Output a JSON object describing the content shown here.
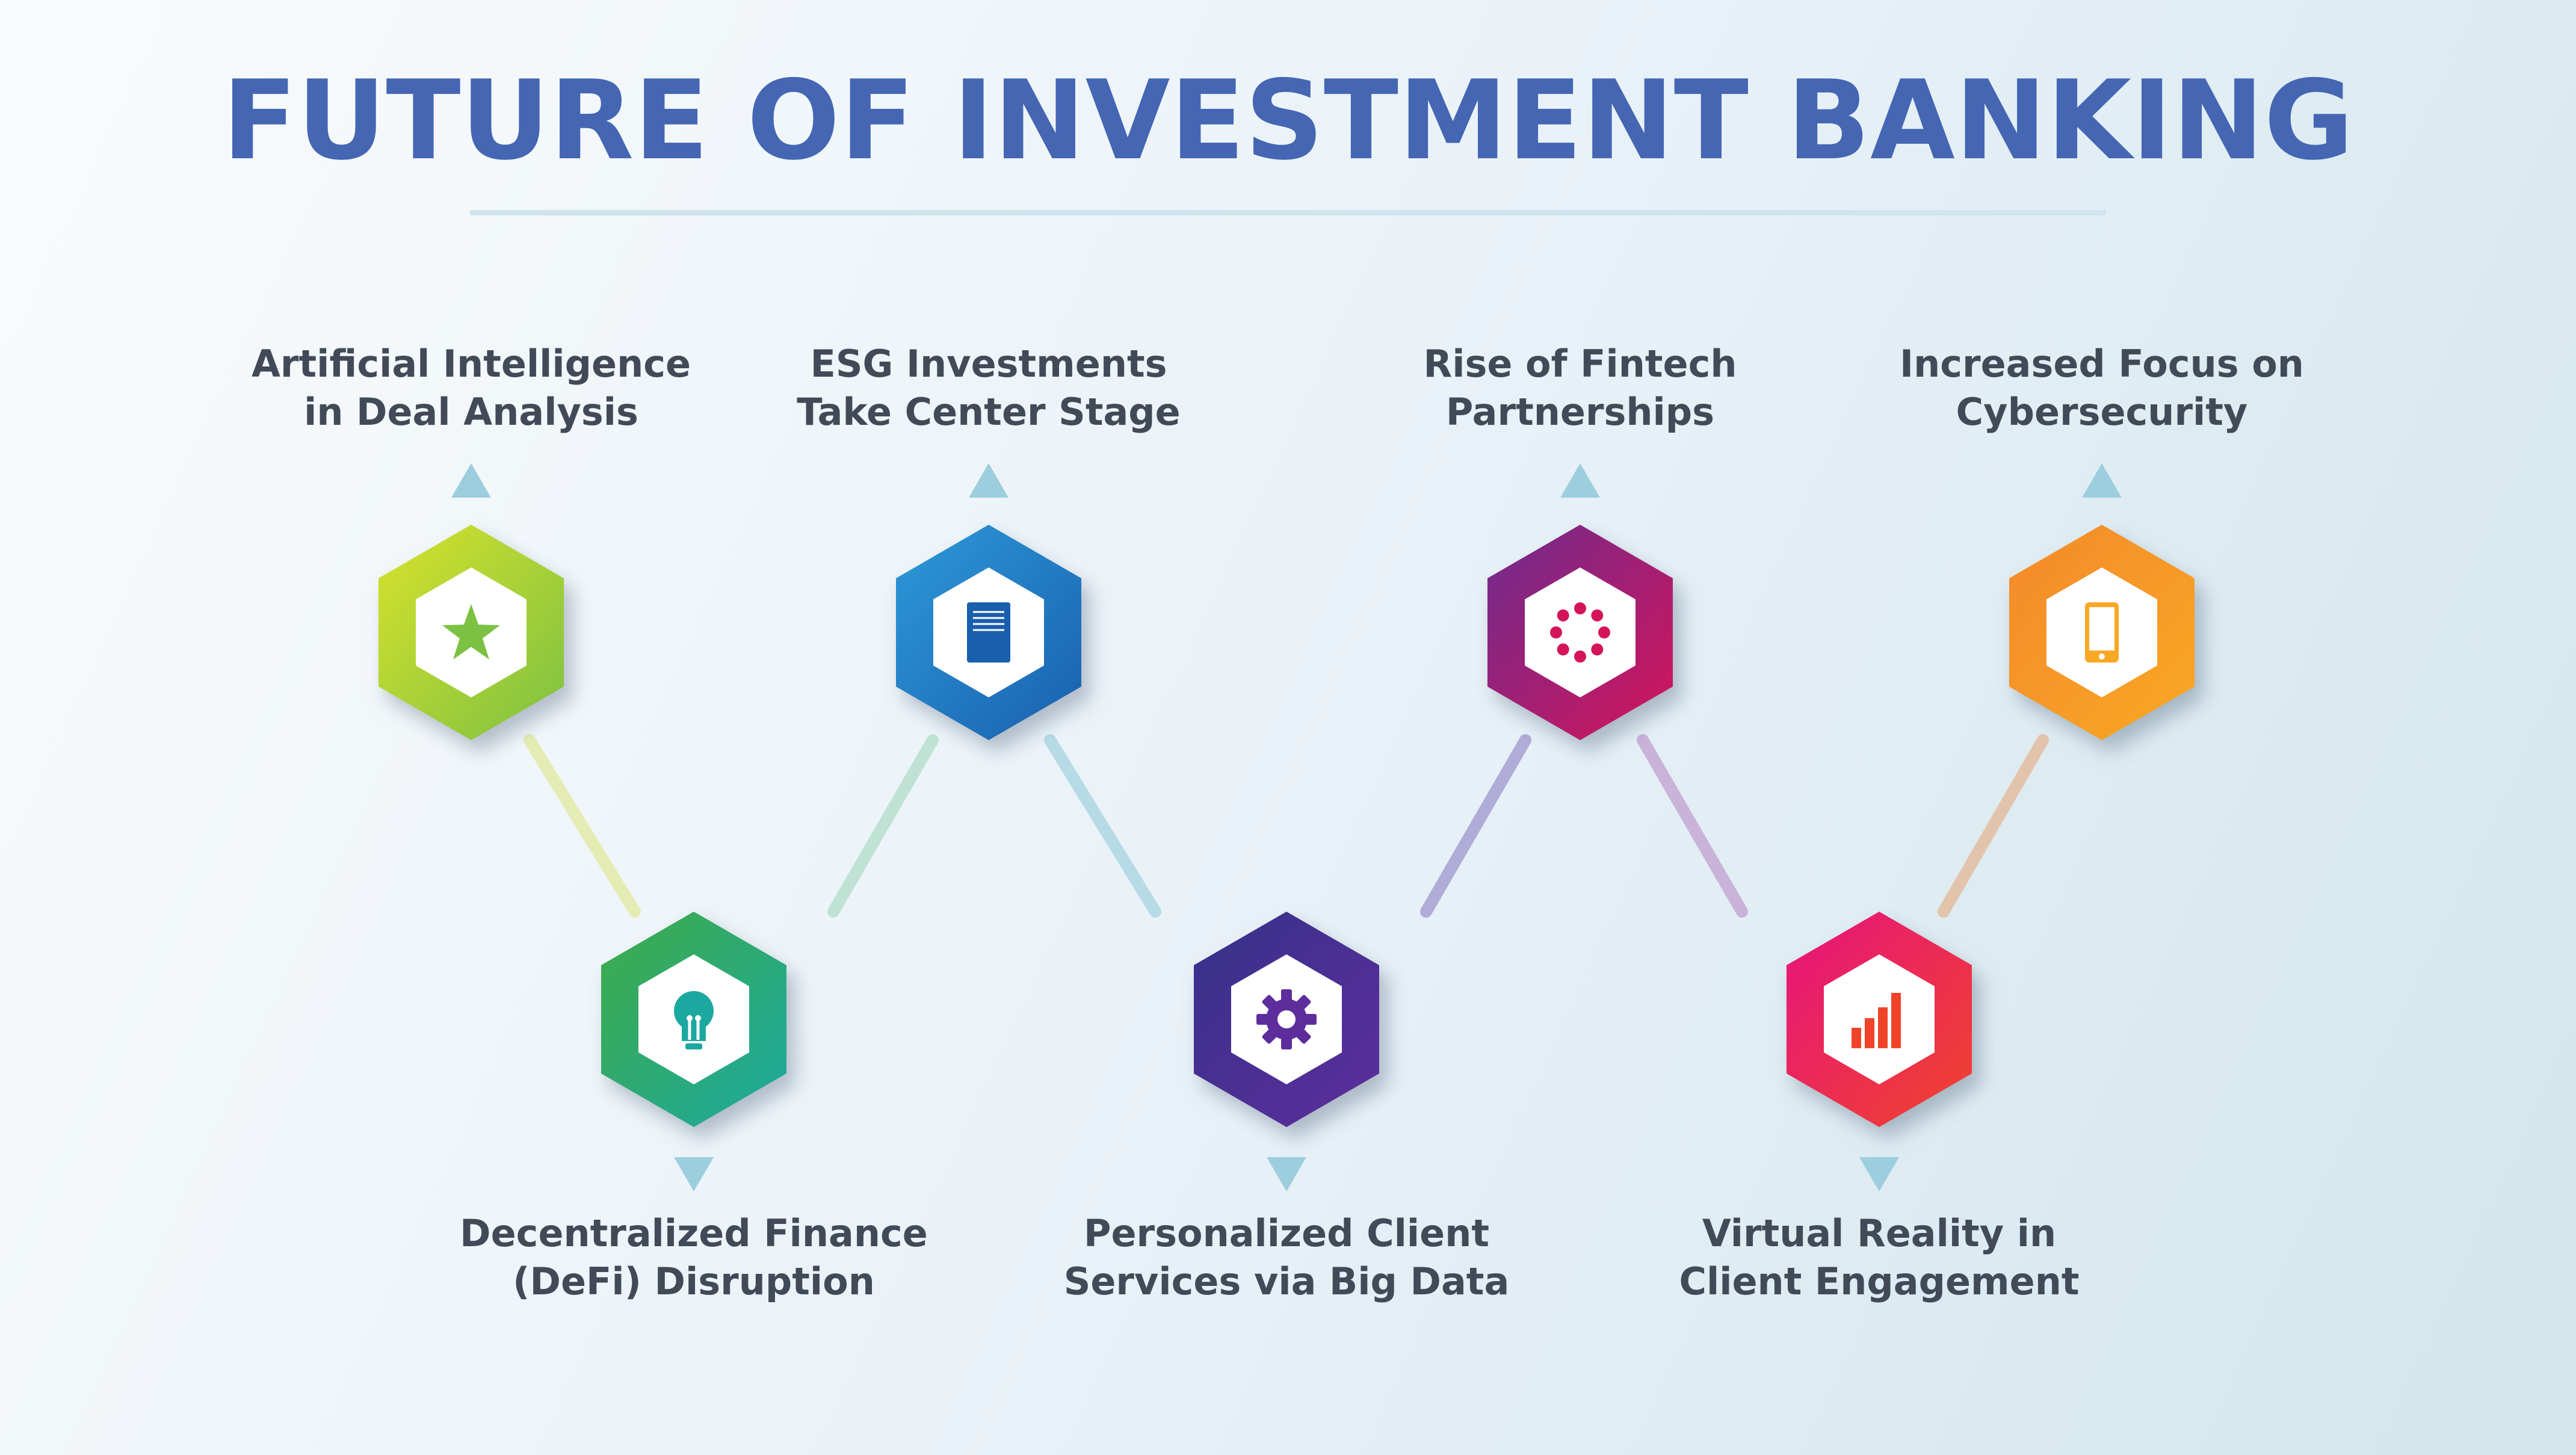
{
  "title": "FUTURE OF INVESTMENT BANKING",
  "steps": [
    {
      "line1": "Artificial Intelligence",
      "line2": "in Deal Analysis",
      "icon": "star-icon",
      "color_start": "#d8e22c",
      "color_end": "#7cc142"
    },
    {
      "line1": "Decentralized Finance",
      "line2": "(DeFi) Disruption",
      "icon": "lightbulb-icon",
      "color_start": "#3fac48",
      "color_end": "#1ba8a0"
    },
    {
      "line1": "ESG Investments",
      "line2": "Take Center Stage",
      "icon": "document-icon",
      "color_start": "#2c9ad8",
      "color_end": "#1a5fae"
    },
    {
      "line1": "Personalized Client",
      "line2": "Services via Big Data",
      "icon": "gear-icon",
      "color_start": "#36328a",
      "color_end": "#5e2d9c"
    },
    {
      "line1": "Rise of Fintech",
      "line2": "Partnerships",
      "icon": "loading-dots-icon",
      "color_start": "#6e2b8e",
      "color_end": "#d4145a"
    },
    {
      "line1": "Virtual Reality in",
      "line2": "Client Engagement",
      "icon": "bar-chart-icon",
      "color_start": "#e6137e",
      "color_end": "#f0442a"
    },
    {
      "line1": "Increased Focus on",
      "line2": "Cybersecurity",
      "icon": "tablet-icon",
      "color_start": "#f4892a",
      "color_end": "#f9a825"
    }
  ],
  "colors": {
    "title": "#4466b3",
    "label": "#424a58",
    "arrow": "#9ccede",
    "underline": "#cfe4ec",
    "connectors": [
      "#e4ecb4",
      "#bfe2d4",
      "#b7dbe6",
      "#b0acd8",
      "#c9b3d8",
      "#e2c4ac"
    ]
  }
}
